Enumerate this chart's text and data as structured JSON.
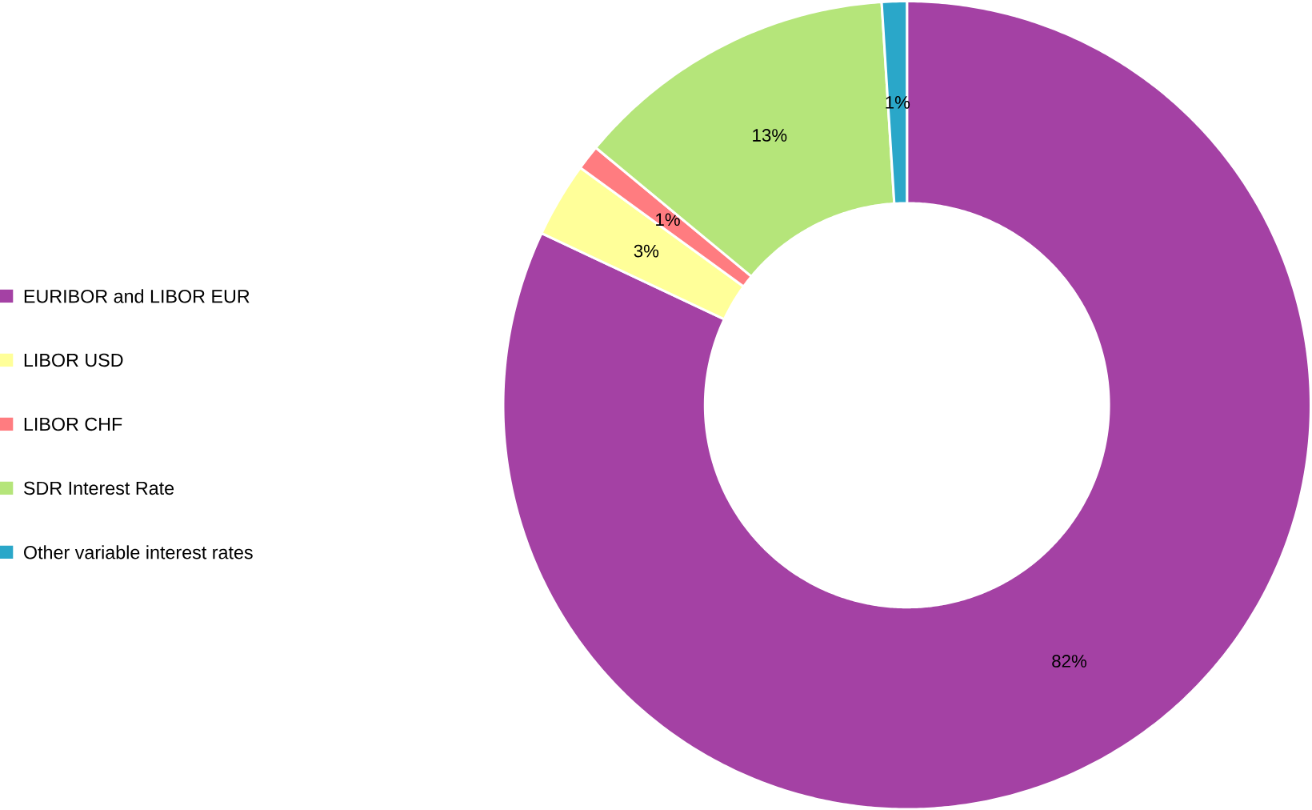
{
  "chart_data": {
    "type": "donut",
    "categories": [
      "EURIBOR and LIBOR EUR",
      "LIBOR USD",
      "LIBOR CHF",
      "SDR Interest Rate",
      "Other variable interest rates"
    ],
    "values": [
      82,
      3,
      1,
      13,
      1
    ],
    "colors": [
      "#a441a4",
      "#ffff99",
      "#ff7c80",
      "#b5e57a",
      "#2aa7c9"
    ],
    "value_labels": [
      "82%",
      "3%",
      "1%",
      "13%",
      "1%"
    ],
    "legend": "left"
  }
}
